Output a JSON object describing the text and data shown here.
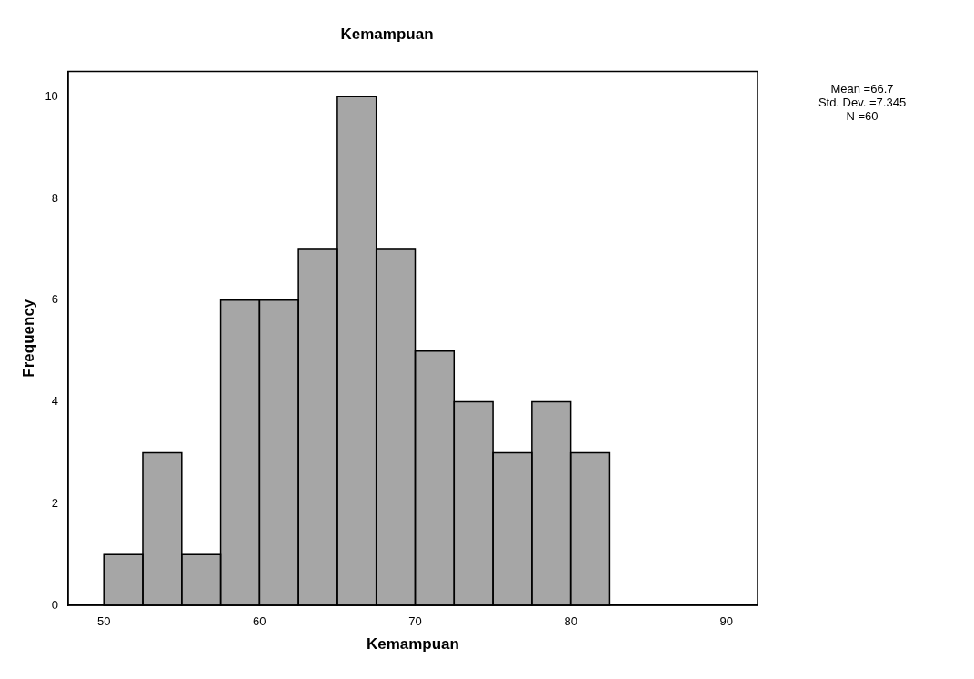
{
  "chart_data": {
    "type": "histogram",
    "title": "Kemampuan",
    "xlabel": "Kemampuan",
    "ylabel": "Frequency",
    "bins": [
      50,
      52.5,
      55,
      57.5,
      60,
      62.5,
      65,
      67.5,
      70,
      72.5,
      75,
      77.5,
      80,
      82.5
    ],
    "values": [
      1,
      3,
      1,
      6,
      6,
      7,
      10,
      7,
      5,
      4,
      3,
      4,
      3
    ],
    "color": "#a6a6a6",
    "xlim": [
      47.7,
      92
    ],
    "xticks": [
      50,
      60,
      70,
      80,
      90
    ],
    "ylim": [
      0,
      10.5
    ],
    "yticks": [
      0,
      2,
      4,
      6,
      8,
      10
    ],
    "grid": false,
    "legend": false,
    "annotations": [
      "Mean =66.7",
      "Std. Dev. =7.345",
      "N =60"
    ]
  }
}
